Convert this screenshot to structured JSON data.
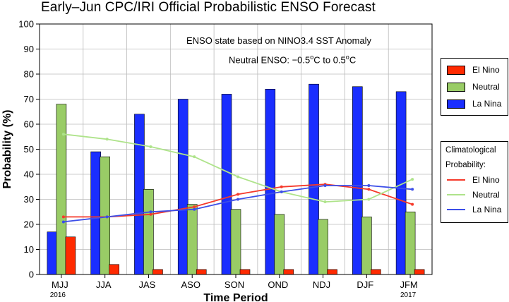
{
  "title": "Early–Jun CPC/IRI Official Probabilistic ENSO Forecast",
  "annotation_line1": "ENSO state based on NINO3.4 SST Anomaly",
  "annotation_line2": {
    "prefix": "Neutral ENSO: −0.5",
    "deg1": "o",
    "mid": "C to 0.5",
    "deg2": "o",
    "suffix": "C"
  },
  "legend": {
    "el_nino": "El Nino",
    "neutral": "Neutral",
    "la_nina": "La Nina"
  },
  "clim_legend": {
    "title_line1": "Climatological",
    "title_line2": "Probability:",
    "el_nino": "El Nino",
    "neutral": "Neutral",
    "la_nina": "La Nina"
  },
  "colors": {
    "el_nino": "#ff2a00",
    "neutral": "#99cc66",
    "la_nina": "#1a2eff",
    "clim_el_nino": "#f5392a",
    "clim_neutral": "#aee38a",
    "clim_la_nina": "#3c4ee8"
  },
  "chart_data": {
    "type": "bar",
    "title": "Early–Jun CPC/IRI Official Probabilistic ENSO Forecast",
    "xlabel": "Time Period",
    "ylabel": "Probability (%)",
    "ylim": [
      0,
      100
    ],
    "yticks": [
      0,
      10,
      20,
      30,
      40,
      50,
      60,
      70,
      80,
      90,
      100
    ],
    "grid": true,
    "legend_position": "right",
    "categories": [
      "MJJ",
      "JJA",
      "JAS",
      "ASO",
      "SON",
      "OND",
      "NDJ",
      "DJF",
      "JFM"
    ],
    "year_labels": {
      "first": "2016",
      "last": "2017"
    },
    "series": [
      {
        "name": "La Nina",
        "values": [
          17,
          49,
          64,
          70,
          72,
          74,
          76,
          75,
          73
        ]
      },
      {
        "name": "Neutral",
        "values": [
          68,
          47,
          34,
          28,
          26,
          24,
          22,
          23,
          25
        ]
      },
      {
        "name": "El Nino",
        "values": [
          15,
          4,
          2,
          2,
          2,
          2,
          2,
          2,
          2
        ]
      }
    ],
    "climatology": [
      {
        "name": "El Nino",
        "values": [
          23,
          23,
          24,
          27,
          32,
          35,
          36,
          34,
          28
        ]
      },
      {
        "name": "Neutral",
        "values": [
          56,
          54,
          51,
          47,
          39,
          33,
          29,
          30,
          38
        ]
      },
      {
        "name": "La Nina",
        "values": [
          21,
          23,
          25,
          26,
          30,
          33,
          35.5,
          35.5,
          34
        ]
      }
    ]
  }
}
